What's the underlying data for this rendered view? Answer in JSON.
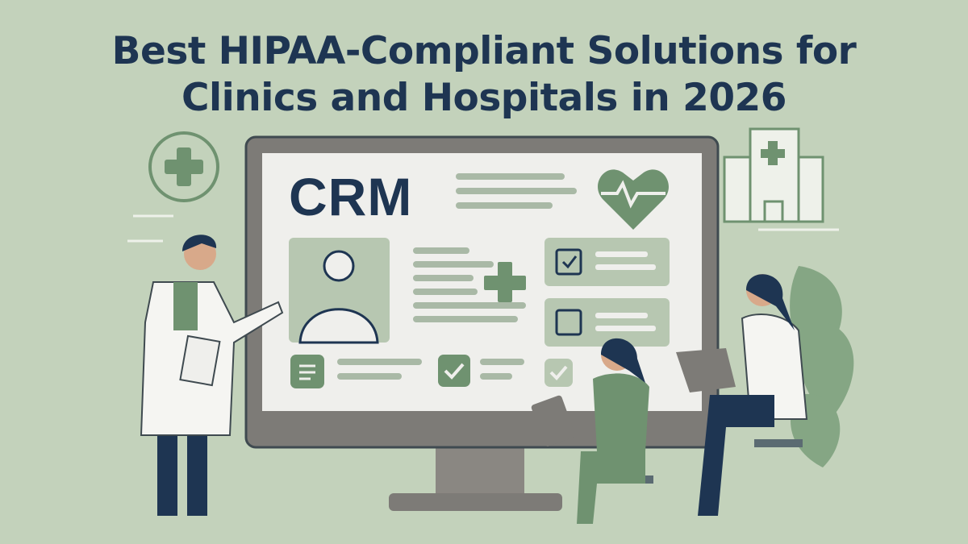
{
  "banner": {
    "title_line1": "Best HIPAA-Compliant Solutions for",
    "title_line2": "Clinics and Hospitals in 2026",
    "screen_label": "CRM"
  },
  "colors": {
    "background": "#c3d2bb",
    "title": "#1e3552",
    "accent_green": "#6f9270",
    "monitor_frame": "#7d7b77",
    "screen": "#efefec"
  },
  "icons": [
    "medical-cross-icon",
    "heart-pulse-icon",
    "hospital-icon",
    "doctor-avatar-icon",
    "calendar-check-icon",
    "calendar-icon",
    "note-icon",
    "checkmark-icon",
    "leaf-plant-icon"
  ]
}
